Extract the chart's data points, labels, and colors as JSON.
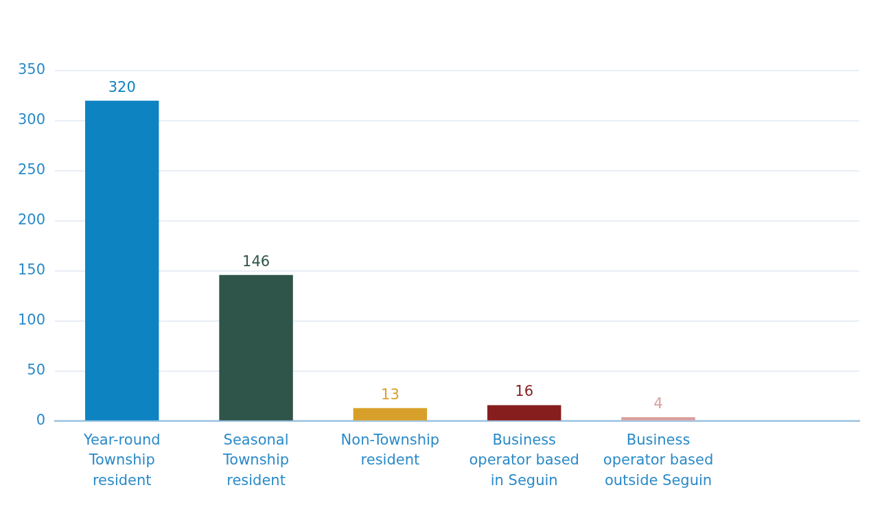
{
  "chart_data": {
    "type": "bar",
    "categories": [
      "Year-round Township resident",
      "Seasonal Township resident",
      "Non-Township resident",
      "Business operator based in Seguin",
      "Business operator based outside Seguin",
      null
    ],
    "values": [
      320,
      146,
      13,
      16,
      4,
      null
    ],
    "colors": [
      "#0e83c1",
      "#2f544a",
      "#d8a02a",
      "#861e1e",
      "#d9a0a0",
      "#cccccc"
    ],
    "ylim": [
      0,
      350
    ],
    "yticks": [
      0,
      50,
      100,
      150,
      200,
      250,
      300,
      350
    ],
    "grid": "y",
    "data_labels": true,
    "legend": false
  }
}
